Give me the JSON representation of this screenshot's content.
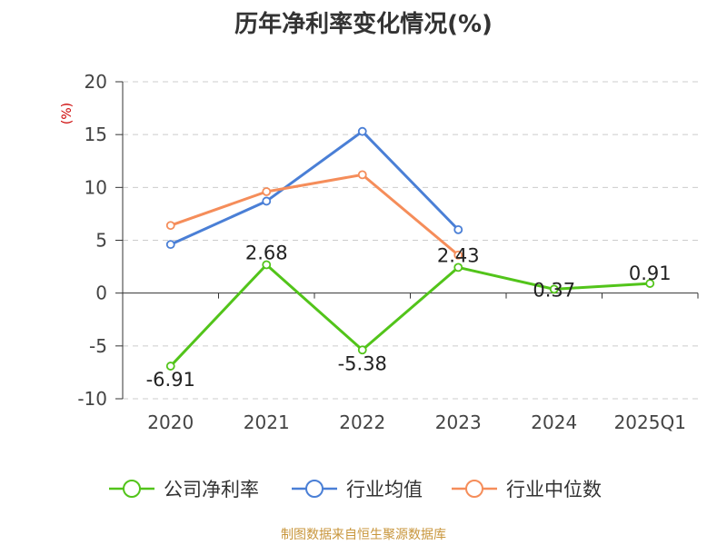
{
  "title": "历年净利率变化情况(%)",
  "footer": "制图数据来自恒生聚源数据库",
  "chart_data": {
    "type": "line",
    "title": "历年净利率变化情况(%)",
    "ylabel": "(%)",
    "xlabel": "",
    "ylim": [
      -10,
      20
    ],
    "yticks": [
      20,
      15,
      10,
      5,
      0,
      -5,
      -10
    ],
    "categories": [
      "2020",
      "2021",
      "2022",
      "2023",
      "2024",
      "2025Q1"
    ],
    "grid": "horizontal-dashed",
    "legend_position": "bottom",
    "series": [
      {
        "name": "公司净利率",
        "color": "#52c41a",
        "values": [
          -6.91,
          2.68,
          -5.38,
          2.43,
          0.37,
          0.91
        ],
        "labels": [
          "-6.91",
          "2.68",
          "-5.38",
          "2.43",
          "0.37",
          "0.91"
        ]
      },
      {
        "name": "行业均值",
        "color": "#4a7fd6",
        "values": [
          4.6,
          8.7,
          15.3,
          6.0,
          null,
          null
        ]
      },
      {
        "name": "行业中位数",
        "color": "#f58d5a",
        "values": [
          6.4,
          9.6,
          11.2,
          3.6,
          null,
          null
        ]
      }
    ]
  }
}
